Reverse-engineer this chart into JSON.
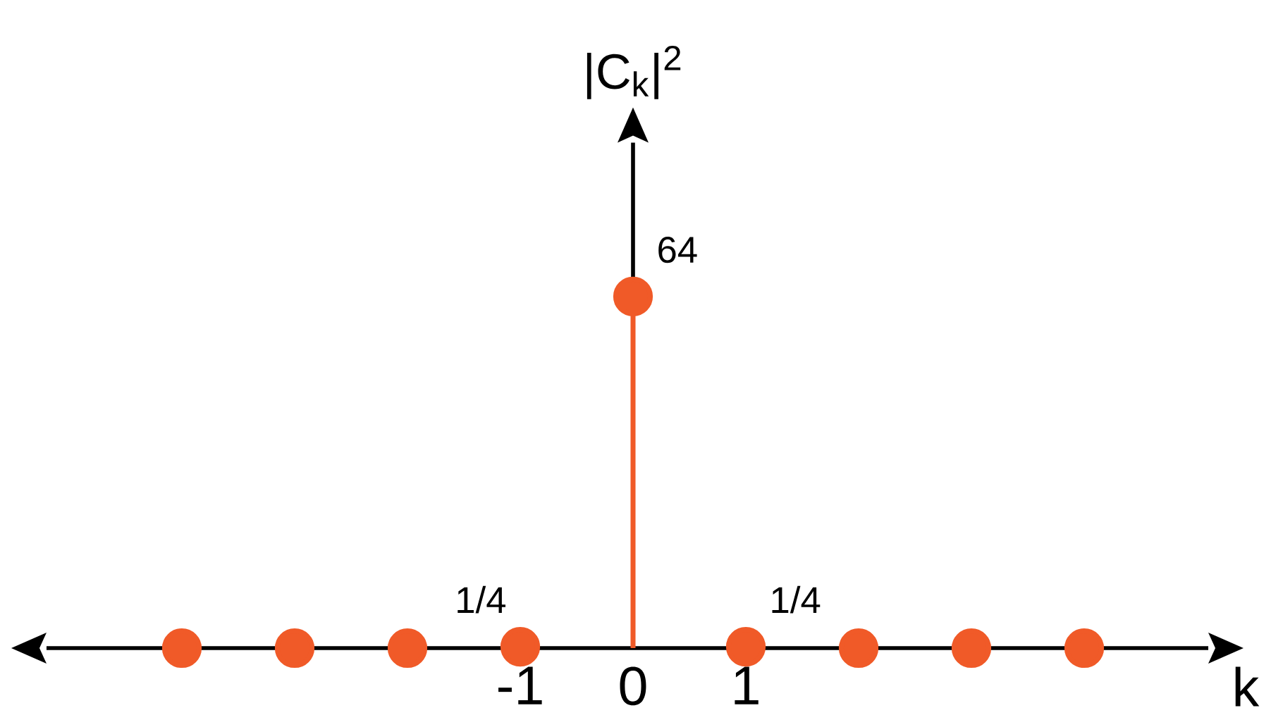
{
  "chart_data": {
    "type": "lollipop",
    "xlabel": "k",
    "ylabel": "|C$_{k}$|$^{2}$",
    "x": [
      -4,
      -3,
      -2,
      -1,
      0,
      1,
      2,
      3,
      4
    ],
    "values": [
      0,
      0,
      0,
      0.25,
      64,
      0.25,
      0,
      0,
      0
    ],
    "value_labels": [
      null,
      null,
      null,
      "1/4",
      "64",
      "1/4",
      null,
      null,
      null
    ],
    "color": "#f05a28",
    "marker": "circle",
    "line_style": "solid",
    "xlim": [
      -5.2,
      5.1
    ],
    "ylim": [
      0,
      92
    ],
    "xticks": [
      -1,
      0,
      1
    ],
    "tick_labels": "x"
  }
}
